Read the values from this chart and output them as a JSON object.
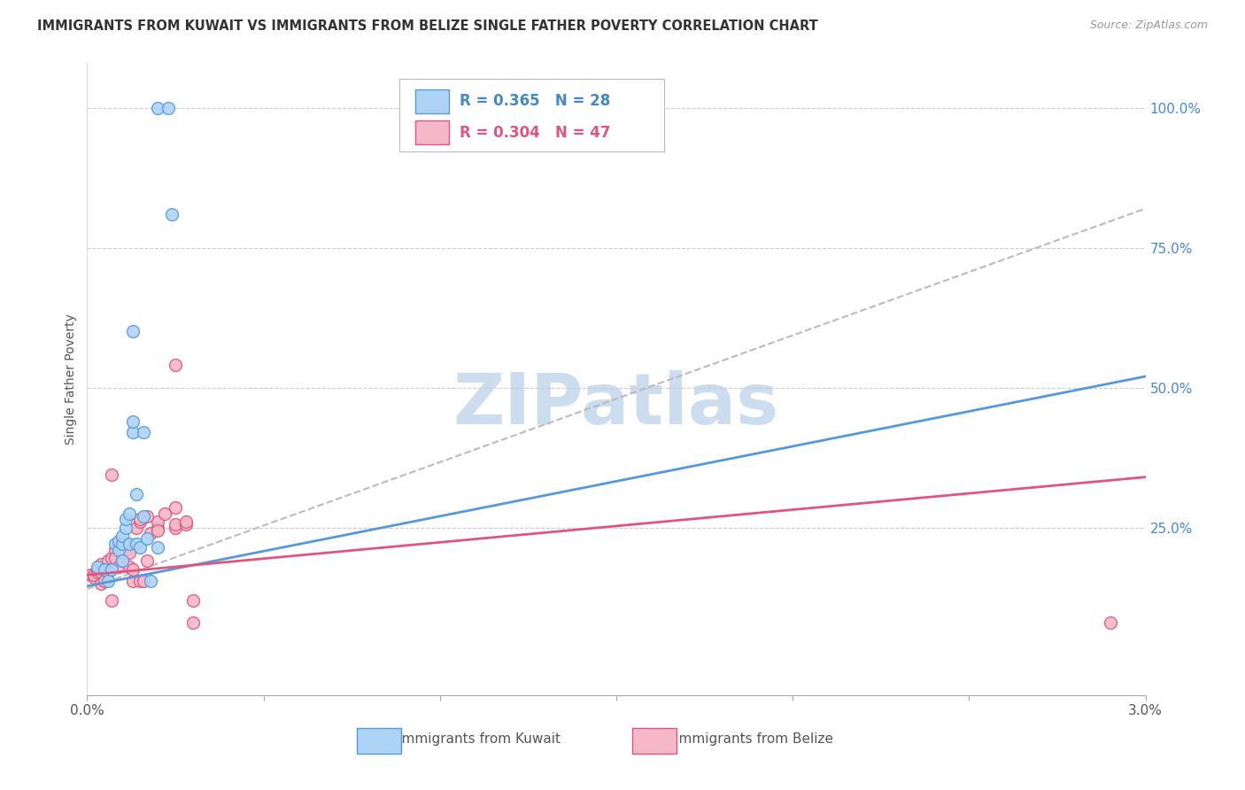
{
  "title": "IMMIGRANTS FROM KUWAIT VS IMMIGRANTS FROM BELIZE SINGLE FATHER POVERTY CORRELATION CHART",
  "source": "Source: ZipAtlas.com",
  "ylabel": "Single Father Poverty",
  "y_tick_labels": [
    "100.0%",
    "75.0%",
    "50.0%",
    "25.0%"
  ],
  "y_tick_positions": [
    1.0,
    0.75,
    0.5,
    0.25
  ],
  "xlim": [
    0.0,
    0.03
  ],
  "ylim": [
    -0.05,
    1.08
  ],
  "legend_label1": "Immigrants from Kuwait",
  "legend_label2": "Immigrants from Belize",
  "color_kuwait": "#aed4f5",
  "color_belize": "#f5b8c8",
  "color_line_kuwait": "#5599dd",
  "color_line_belize": "#e05580",
  "color_line_dashed": "#bbbbbb",
  "watermark": "ZIPatlas",
  "watermark_color": "#ccddef",
  "kuwait_x": [
    0.0003,
    0.0005,
    0.0006,
    0.0007,
    0.0008,
    0.0009,
    0.0009,
    0.001,
    0.001,
    0.001,
    0.0011,
    0.0011,
    0.0012,
    0.0012,
    0.0013,
    0.0013,
    0.0013,
    0.0014,
    0.0014,
    0.0015,
    0.0016,
    0.0016,
    0.0017,
    0.0018,
    0.002,
    0.002,
    0.0023,
    0.0024
  ],
  "kuwait_y": [
    0.18,
    0.175,
    0.155,
    0.175,
    0.22,
    0.21,
    0.225,
    0.19,
    0.22,
    0.235,
    0.25,
    0.265,
    0.22,
    0.275,
    0.42,
    0.44,
    0.6,
    0.31,
    0.22,
    0.215,
    0.42,
    0.27,
    0.23,
    0.155,
    0.215,
    1.0,
    1.0,
    0.81
  ],
  "belize_x": [
    0.0001,
    0.0002,
    0.0002,
    0.0003,
    0.0003,
    0.0004,
    0.0004,
    0.0004,
    0.0005,
    0.0005,
    0.0006,
    0.0006,
    0.0007,
    0.0007,
    0.0007,
    0.0008,
    0.0008,
    0.0009,
    0.001,
    0.001,
    0.0011,
    0.0011,
    0.0012,
    0.0012,
    0.0013,
    0.0013,
    0.0014,
    0.0015,
    0.0015,
    0.0016,
    0.0017,
    0.0018,
    0.002,
    0.002,
    0.0022,
    0.0025,
    0.0025,
    0.0028,
    0.0028,
    0.003,
    0.0025,
    0.0017,
    0.002,
    0.0015,
    0.003,
    0.0025,
    0.029
  ],
  "belize_y": [
    0.165,
    0.16,
    0.165,
    0.17,
    0.175,
    0.15,
    0.17,
    0.185,
    0.155,
    0.175,
    0.19,
    0.17,
    0.12,
    0.195,
    0.345,
    0.21,
    0.195,
    0.18,
    0.19,
    0.205,
    0.21,
    0.22,
    0.18,
    0.205,
    0.155,
    0.175,
    0.25,
    0.155,
    0.26,
    0.155,
    0.19,
    0.24,
    0.25,
    0.26,
    0.275,
    0.25,
    0.255,
    0.255,
    0.26,
    0.12,
    0.285,
    0.27,
    0.245,
    0.265,
    0.08,
    0.54,
    0.08
  ],
  "kuwait_line_x0": 0.0,
  "kuwait_line_x1": 0.03,
  "kuwait_line_y0": 0.145,
  "kuwait_line_y1": 0.52,
  "belize_line_x0": 0.0,
  "belize_line_x1": 0.03,
  "belize_line_y0": 0.165,
  "belize_line_y1": 0.34,
  "dash_line_x0": 0.0,
  "dash_line_x1": 0.03,
  "dash_line_y0": 0.14,
  "dash_line_y1": 0.82
}
